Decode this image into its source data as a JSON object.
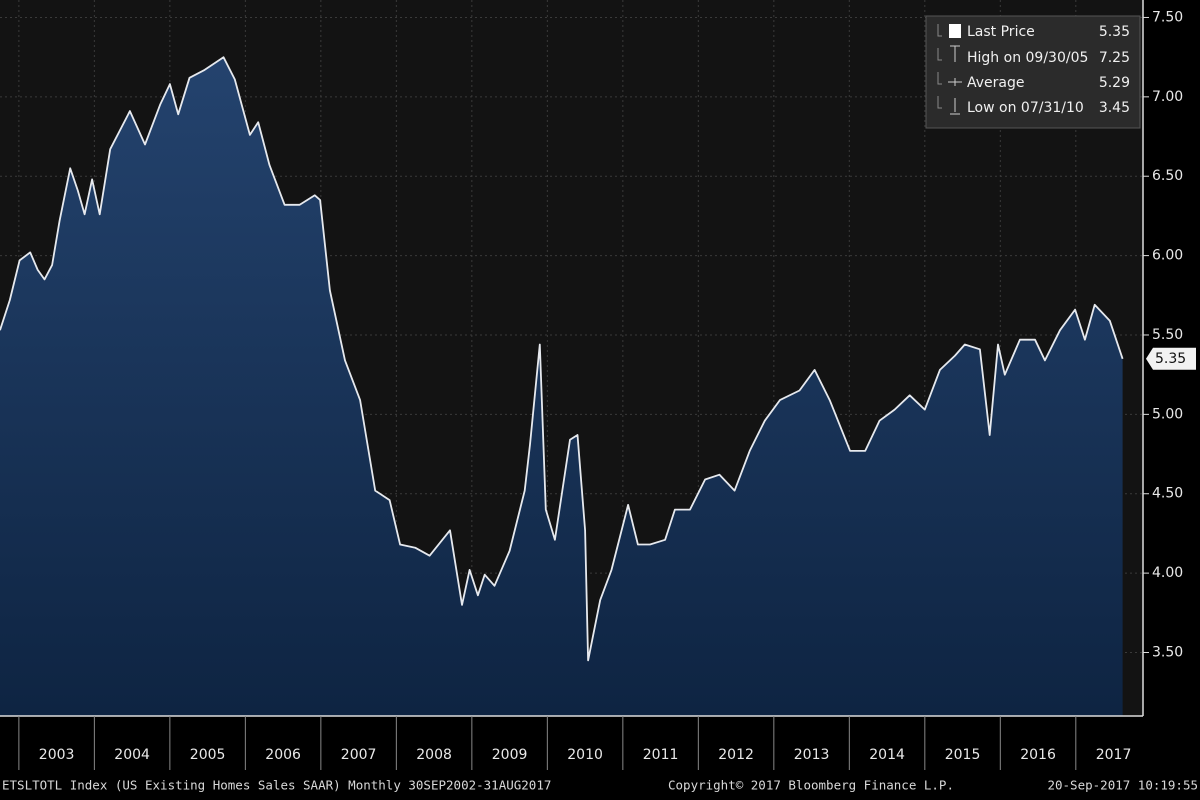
{
  "chart_data": {
    "type": "area",
    "x": [
      2002.75,
      2002.88,
      2003.01,
      2003.15,
      2003.25,
      2003.34,
      2003.44,
      2003.54,
      2003.68,
      2003.78,
      2003.87,
      2003.97,
      2004.07,
      2004.21,
      2004.47,
      2004.67,
      2004.87,
      2005.0,
      2005.11,
      2005.26,
      2005.46,
      2005.71,
      2005.86,
      2006.06,
      2006.17,
      2006.32,
      2006.52,
      2006.72,
      2006.92,
      2006.99,
      2007.12,
      2007.32,
      2007.52,
      2007.72,
      2007.91,
      2008.05,
      2008.25,
      2008.44,
      2008.71,
      2008.87,
      2008.97,
      2009.08,
      2009.17,
      2009.3,
      2009.5,
      2009.7,
      2009.77,
      2009.9,
      2009.98,
      2010.1,
      2010.3,
      2010.4,
      2010.5,
      2010.54,
      2010.7,
      2010.85,
      2011.07,
      2011.2,
      2011.36,
      2011.56,
      2011.69,
      2011.89,
      2012.09,
      2012.28,
      2012.48,
      2012.68,
      2012.88,
      2013.08,
      2013.34,
      2013.54,
      2013.74,
      2014.01,
      2014.21,
      2014.4,
      2014.6,
      2014.8,
      2015.0,
      2015.2,
      2015.4,
      2015.53,
      2015.73,
      2015.86,
      2015.97,
      2016.06,
      2016.26,
      2016.46,
      2016.59,
      2016.79,
      2016.99,
      2017.12,
      2017.25,
      2017.45,
      2017.62
    ],
    "values": [
      5.53,
      5.72,
      5.97,
      6.02,
      5.91,
      5.85,
      5.94,
      6.22,
      6.55,
      6.41,
      6.26,
      6.48,
      6.26,
      6.67,
      6.91,
      6.7,
      6.95,
      7.08,
      6.89,
      7.12,
      7.17,
      7.25,
      7.11,
      6.76,
      6.84,
      6.57,
      6.32,
      6.32,
      6.38,
      6.35,
      5.78,
      5.34,
      5.09,
      4.52,
      4.46,
      4.18,
      4.16,
      4.11,
      4.27,
      3.8,
      4.02,
      3.86,
      3.99,
      3.92,
      4.14,
      4.52,
      4.81,
      5.44,
      4.4,
      4.21,
      4.84,
      4.87,
      4.27,
      3.45,
      3.83,
      4.02,
      4.43,
      4.18,
      4.18,
      4.21,
      4.4,
      4.4,
      4.59,
      4.62,
      4.52,
      4.77,
      4.96,
      5.09,
      5.15,
      5.28,
      5.09,
      4.77,
      4.77,
      4.96,
      5.03,
      5.12,
      5.03,
      5.28,
      5.37,
      5.44,
      5.41,
      4.87,
      5.44,
      5.25,
      5.47,
      5.47,
      5.34,
      5.53,
      5.66,
      5.47,
      5.69,
      5.59,
      5.35
    ],
    "color": "#e6e9ee",
    "xlim": [
      2002.75,
      2017.89
    ],
    "ylim": [
      3.1,
      7.61
    ],
    "yticks": [
      {
        "value": 3.5,
        "label": "3.50"
      },
      {
        "value": 4,
        "label": "4.00"
      },
      {
        "value": 4.5,
        "label": "4.50"
      },
      {
        "value": 5,
        "label": "5.00"
      },
      {
        "value": 5.5,
        "label": "5.50"
      },
      {
        "value": 6,
        "label": "6.00"
      },
      {
        "value": 6.5,
        "label": "6.50"
      },
      {
        "value": 7,
        "label": "7.00"
      },
      {
        "value": 7.5,
        "label": "7.50"
      }
    ],
    "xticks": [
      {
        "value": 2003.5,
        "label": "2003"
      },
      {
        "value": 2004.5,
        "label": "2004"
      },
      {
        "value": 2005.5,
        "label": "2005"
      },
      {
        "value": 2006.5,
        "label": "2006"
      },
      {
        "value": 2007.5,
        "label": "2007"
      },
      {
        "value": 2008.5,
        "label": "2008"
      },
      {
        "value": 2009.5,
        "label": "2009"
      },
      {
        "value": 2010.5,
        "label": "2010"
      },
      {
        "value": 2011.5,
        "label": "2011"
      },
      {
        "value": 2012.5,
        "label": "2012"
      },
      {
        "value": 2013.5,
        "label": "2013"
      },
      {
        "value": 2014.5,
        "label": "2014"
      },
      {
        "value": 2015.5,
        "label": "2015"
      },
      {
        "value": 2016.5,
        "label": "2016"
      },
      {
        "value": 2017.5,
        "label": "2017"
      }
    ],
    "xgrid": [
      2003,
      2004,
      2005,
      2006,
      2007,
      2008,
      2009,
      2010,
      2011,
      2012,
      2013,
      2014,
      2015,
      2016,
      2017
    ],
    "grid": true,
    "legend": [
      {
        "label": "Last Price",
        "value": 5.35
      },
      {
        "label": "High on 09/30/05",
        "value": 7.25
      },
      {
        "label": "Average",
        "value": 5.29
      },
      {
        "label": "Low on 07/31/10",
        "value": 3.45
      }
    ],
    "footer": {
      "left": "ETSLTOTL Index (US Existing Homes Sales SAAR) Monthly 30SEP2002-31AUG2017",
      "center": "Copyright© 2017 Bloomberg Finance L.P.",
      "right": "20-Sep-2017 10:19:55"
    }
  }
}
